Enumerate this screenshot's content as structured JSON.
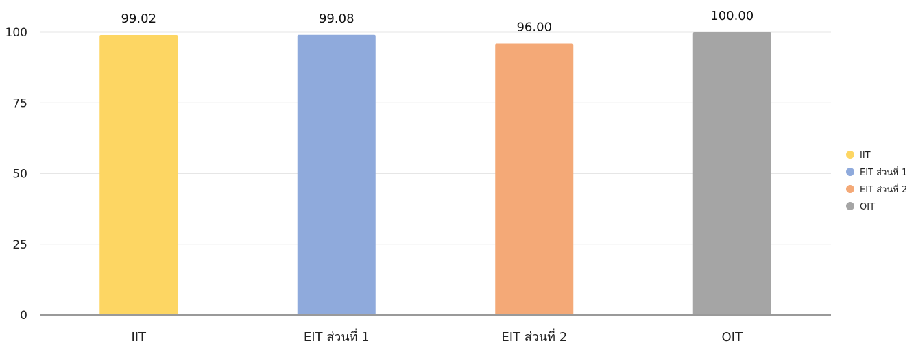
{
  "chart_data": {
    "type": "bar",
    "title": "",
    "xlabel": "",
    "ylabel": "",
    "categories": [
      "IIT",
      "EIT ส่วนที่ 1",
      "EIT ส่วนที่ 2",
      "OIT"
    ],
    "values": [
      99.02,
      99.08,
      96.0,
      100.0
    ],
    "value_labels": [
      "99.02",
      "99.08",
      "96.00",
      "100.00"
    ],
    "colors": [
      "#FDD663",
      "#8FAADC",
      "#F4A977",
      "#A5A5A5"
    ],
    "ylim": [
      0,
      100
    ],
    "yticks": [
      0,
      25,
      50,
      75,
      100
    ],
    "grid": true,
    "legend": {
      "position": "right",
      "entries": [
        {
          "label": "IIT",
          "color": "#FDD663"
        },
        {
          "label": "EIT ส่วนที่ 1",
          "color": "#8FAADC"
        },
        {
          "label": "EIT ส่วนที่ 2",
          "color": "#F4A977"
        },
        {
          "label": "OIT",
          "color": "#A5A5A5"
        }
      ]
    }
  }
}
